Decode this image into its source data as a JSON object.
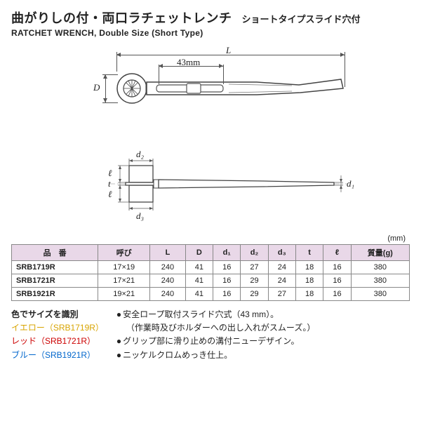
{
  "header": {
    "title_jp": "曲がりしの付・両口ラチェットレンチ",
    "subtitle_jp": "ショートタイプスライド穴付",
    "title_en": "RATCHET WRENCH, Double Size (Short Type)"
  },
  "diagram": {
    "dims": {
      "L": "L",
      "D": "D",
      "slot": "43mm",
      "d1": "d₁",
      "d2": "d₂",
      "d3": "d₃",
      "t": "t",
      "l1": "ℓ",
      "l2": "ℓ"
    }
  },
  "unit_label": "(mm)",
  "table": {
    "columns": [
      "品　番",
      "呼び",
      "L",
      "D",
      "d₁",
      "d₂",
      "d₃",
      "t",
      "ℓ",
      "質量(g)"
    ],
    "rows": [
      [
        "SRB1719R",
        "17×19",
        "240",
        "41",
        "16",
        "27",
        "24",
        "18",
        "16",
        "380"
      ],
      [
        "SRB1721R",
        "17×21",
        "240",
        "41",
        "16",
        "29",
        "24",
        "18",
        "16",
        "380"
      ],
      [
        "SRB1921R",
        "19×21",
        "240",
        "41",
        "16",
        "29",
        "27",
        "18",
        "16",
        "380"
      ]
    ]
  },
  "legend": {
    "header": "色でサイズを識別",
    "yellow": "イエロー（SRB1719R）",
    "red": "レッド（SRB1721R）",
    "blue": "ブルー（SRB1921R）"
  },
  "bullets": {
    "b1": "安全ロープ取付スライド穴式（43 mm）。",
    "b1sub": "（作業時及びホルダーへの出し入れがスムーズ。）",
    "b2": "グリップ部に滑り止めの溝付ニューデザイン。",
    "b3": "ニッケルクロムめっき仕上。"
  }
}
